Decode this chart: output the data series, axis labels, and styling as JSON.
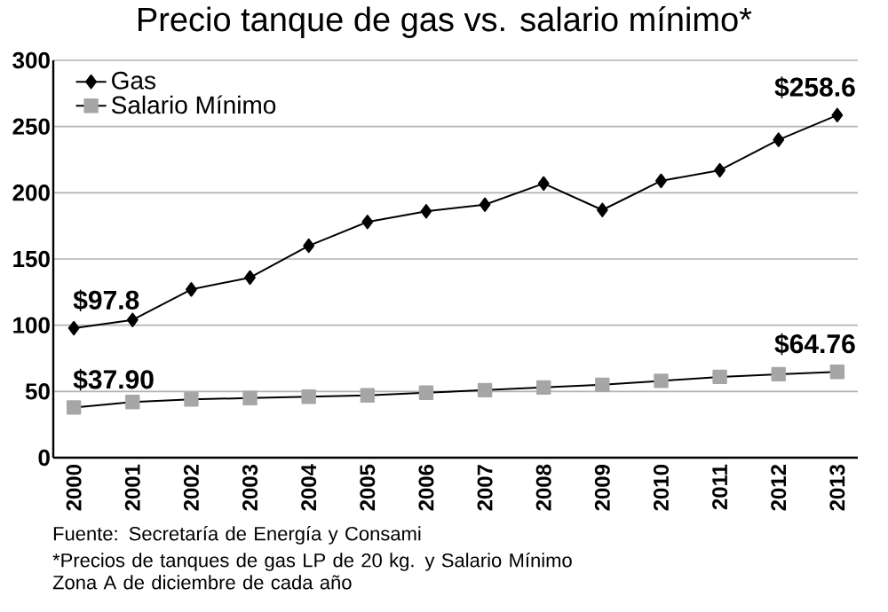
{
  "chart_data": {
    "type": "line",
    "title": "Precio tanque de gas vs. salario mínimo*",
    "categories": [
      "2000",
      "2001",
      "2002",
      "2003",
      "2004",
      "2005",
      "2006",
      "2007",
      "2008",
      "2009",
      "2010",
      "2011",
      "2012",
      "2013"
    ],
    "series": [
      {
        "name": "Gas",
        "color": "#000000",
        "marker": "diamond",
        "values": [
          97.8,
          104,
          127,
          136,
          160,
          178,
          186,
          191,
          207,
          187,
          209,
          217,
          240,
          258.6
        ],
        "value_labels": [
          "$97.8",
          null,
          null,
          null,
          null,
          null,
          null,
          null,
          null,
          null,
          null,
          null,
          null,
          "$258.6"
        ]
      },
      {
        "name": "Salario Mínimo",
        "color": "#a6a6a6",
        "marker": "square",
        "values": [
          37.9,
          42,
          44,
          45,
          46,
          47,
          49,
          51,
          53,
          55,
          58,
          61,
          63,
          64.76
        ],
        "value_labels": [
          "$37.90",
          null,
          null,
          null,
          null,
          null,
          null,
          null,
          null,
          null,
          null,
          null,
          null,
          "$64.76"
        ]
      }
    ],
    "ylim": [
      0,
      300
    ],
    "yticks": [
      0,
      50,
      100,
      150,
      200,
      250,
      300
    ],
    "grid": "y",
    "legend": "top left",
    "annotations": [
      "Fuente: Secretaría de Energía y Consami",
      "*Precios de tanques de gas LP de 20 kg. y Salario Mínimo Zona A de diciembre de cada año"
    ]
  }
}
